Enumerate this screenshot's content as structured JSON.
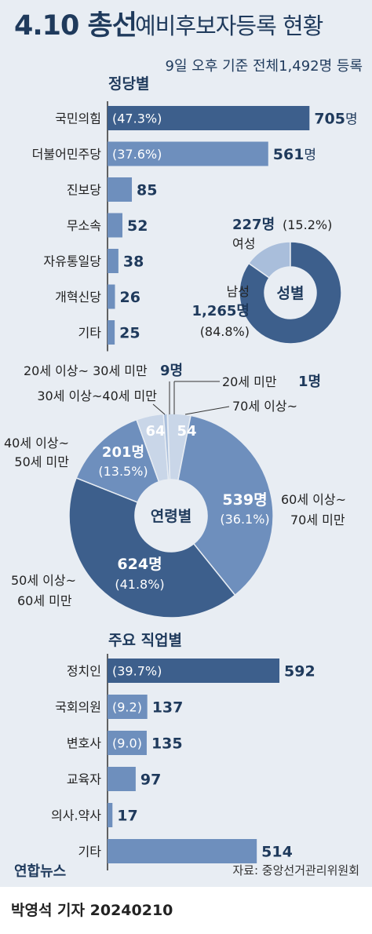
{
  "header": {
    "title_bold": "4.10 총선",
    "title_rest": "예비후보자등록 현황",
    "subtitle": "9일 오후 기준 전체1,492명 등록"
  },
  "footer": {
    "source": "자료: 중앙선거관리위원회",
    "credit": "박영석 기자  20240210",
    "logo": "연합뉴스"
  },
  "colors": {
    "dark": "#3d5f8c",
    "mid": "#6e8fbd",
    "light": "#a9bedb",
    "lightest": "#c9d6e8",
    "title": "#1f3a5c"
  },
  "chart_data": [
    {
      "type": "bar",
      "title": "정당별",
      "categories": [
        "국민의힘",
        "더불어민주당",
        "진보당",
        "무소속",
        "자유통일당",
        "개혁신당",
        "기타"
      ],
      "values": [
        705,
        561,
        85,
        52,
        38,
        26,
        25
      ],
      "inner_labels": [
        "(47.3%)",
        "(37.6%)",
        "",
        "",
        "",
        "",
        ""
      ],
      "value_suffix": [
        "명",
        "명",
        "",
        "",
        "",
        "",
        ""
      ]
    },
    {
      "type": "pie",
      "title": "성별",
      "slices": [
        {
          "label": "여성",
          "value": 227,
          "percent": 15.2,
          "text_value": "227명",
          "text_percent": "(15.2%)"
        },
        {
          "label": "남성",
          "value": 1265,
          "percent": 84.8,
          "text_value": "1,265명",
          "text_percent": "(84.8%)"
        }
      ]
    },
    {
      "type": "pie",
      "title": "연령별",
      "slices": [
        {
          "label": "20세 미만",
          "value": 1,
          "text_value": "1명"
        },
        {
          "label": "70세 이상~",
          "value": 54,
          "text_value": "54"
        },
        {
          "label": "60세 이상~ 70세 미만",
          "value": 539,
          "percent": 36.1,
          "text_value": "539명",
          "text_percent": "(36.1%)"
        },
        {
          "label": "50세 이상~ 60세 미만",
          "value": 624,
          "percent": 41.8,
          "text_value": "624명",
          "text_percent": "(41.8%)"
        },
        {
          "label": "40세 이상~ 50세 미만",
          "value": 201,
          "percent": 13.5,
          "text_value": "201명",
          "text_percent": "(13.5%)"
        },
        {
          "label": "30세 이상~40세 미만",
          "value": 64,
          "text_value": "64"
        },
        {
          "label": "20세 이상~ 30세 미만",
          "value": 9,
          "text_value": "9명"
        }
      ]
    },
    {
      "type": "bar",
      "title": "주요 직업별",
      "categories": [
        "정치인",
        "국회의원",
        "변호사",
        "교육자",
        "의사.약사",
        "기타"
      ],
      "values": [
        592,
        137,
        135,
        97,
        17,
        514
      ],
      "inner_labels": [
        "(39.7%)",
        "(9.2)",
        "(9.0)",
        "",
        "",
        ""
      ]
    }
  ]
}
